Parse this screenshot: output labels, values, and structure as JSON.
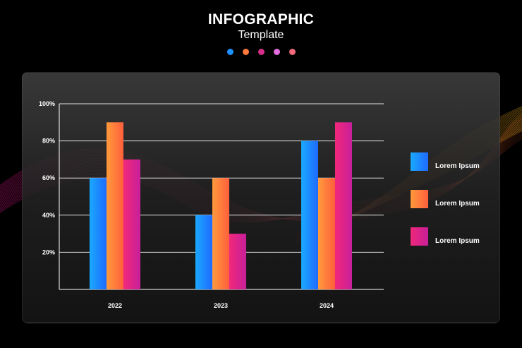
{
  "header": {
    "title": "INFOGRAPHIC",
    "subtitle": "Template",
    "dots": [
      "#1e90ff",
      "#ff7a3d",
      "#d62e8a",
      "#e46be0",
      "#f06a7a"
    ]
  },
  "colors": {
    "background": "#000000",
    "wave_left": "#e0158f",
    "wave_right": "#e0a21a",
    "grid": "#ffffff"
  },
  "chart_data": {
    "type": "bar",
    "categories": [
      "2022",
      "2023",
      "2024"
    ],
    "series": [
      {
        "name": "Lorem Ipsum",
        "values": [
          60,
          40,
          80
        ],
        "gradient": [
          "#1aa9ff",
          "#1f6bff"
        ]
      },
      {
        "name": "Lorem Ipsum",
        "values": [
          90,
          60,
          60
        ],
        "gradient": [
          "#ff9a3c",
          "#ff5f3c"
        ]
      },
      {
        "name": "Lorem Ipsum",
        "values": [
          70,
          30,
          90
        ],
        "gradient": [
          "#f0287a",
          "#c81f9a"
        ]
      }
    ],
    "yticks": [
      "20%",
      "40%",
      "60%",
      "80%",
      "100%"
    ],
    "ylim": [
      0,
      100
    ],
    "grid": true,
    "legend_position": "right"
  }
}
